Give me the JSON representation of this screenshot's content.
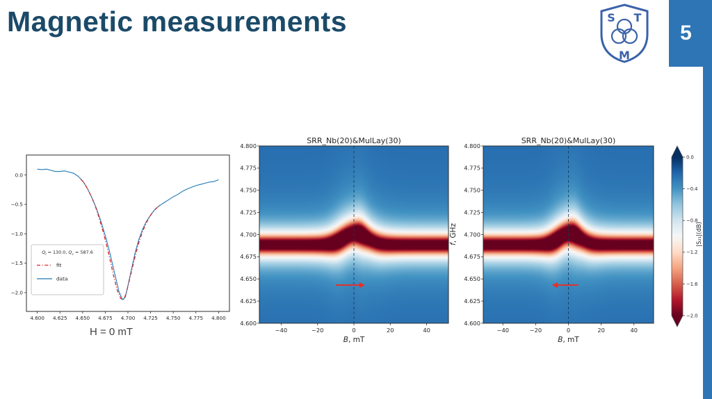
{
  "slide": {
    "title": "Magnetic measurements",
    "page_number": "5",
    "caption": "H = 0 mT",
    "accent_color": "#2e75b6",
    "title_color": "#1b4a68",
    "background": "#ffffff"
  },
  "logo": {
    "letter_top_left": "S",
    "letter_top_right": "T",
    "letter_bottom": "M",
    "color": "#3a62a8"
  },
  "chart_data": [
    {
      "type": "line",
      "title": "",
      "xlim": [
        4.588,
        4.812
      ],
      "ylim": [
        -2.32,
        0.34
      ],
      "x_ticks": {
        "values": [
          4.6,
          4.625,
          4.65,
          4.675,
          4.7,
          4.725,
          4.75,
          4.775,
          4.8
        ],
        "labels": [
          "4.600",
          "4.625",
          "4.650",
          "4.675",
          "4.700",
          "4.725",
          "4.750",
          "4.775",
          "4.800"
        ]
      },
      "y_ticks": {
        "values": [
          0.0,
          -0.5,
          -1.0,
          -1.5,
          -2.0
        ],
        "labels": [
          "0.0",
          "−0.5",
          "−1.0",
          "−1.5",
          "−2.0"
        ]
      },
      "legend": {
        "title": "Q_l = 130.0, Q_c = 587.6",
        "entries": [
          {
            "label": "fit",
            "color": "#d62728",
            "dash": "dashdot"
          },
          {
            "label": "data",
            "color": "#1f77b4",
            "dash": "solid"
          }
        ]
      },
      "series": [
        {
          "name": "data",
          "color": "#1f77b4",
          "dash": "solid",
          "x": [
            4.6,
            4.605,
            4.61,
            4.615,
            4.62,
            4.625,
            4.63,
            4.635,
            4.64,
            4.645,
            4.65,
            4.655,
            4.66,
            4.665,
            4.67,
            4.675,
            4.68,
            4.685,
            4.69,
            4.694,
            4.697,
            4.7,
            4.704,
            4.708,
            4.712,
            4.716,
            4.72,
            4.725,
            4.73,
            4.735,
            4.74,
            4.745,
            4.75,
            4.755,
            4.76,
            4.765,
            4.77,
            4.775,
            4.78,
            4.785,
            4.79,
            4.795,
            4.8
          ],
          "y": [
            0.1,
            0.09,
            0.1,
            0.08,
            0.06,
            0.06,
            0.07,
            0.05,
            0.03,
            -0.02,
            -0.1,
            -0.22,
            -0.38,
            -0.56,
            -0.78,
            -1.03,
            -1.32,
            -1.65,
            -1.98,
            -2.12,
            -2.08,
            -1.88,
            -1.6,
            -1.32,
            -1.1,
            -0.93,
            -0.8,
            -0.68,
            -0.58,
            -0.52,
            -0.47,
            -0.42,
            -0.37,
            -0.33,
            -0.28,
            -0.24,
            -0.21,
            -0.18,
            -0.16,
            -0.14,
            -0.12,
            -0.11,
            -0.08
          ]
        },
        {
          "name": "fit",
          "color": "#d62728",
          "dash": "dashdot",
          "x": [
            4.648,
            4.652,
            4.656,
            4.66,
            4.664,
            4.668,
            4.672,
            4.676,
            4.68,
            4.684,
            4.688,
            4.692,
            4.695,
            4.698,
            4.701,
            4.705,
            4.709,
            4.713,
            4.717,
            4.721,
            4.726,
            4.731,
            4.736
          ],
          "y": [
            -0.07,
            -0.14,
            -0.25,
            -0.38,
            -0.53,
            -0.72,
            -0.93,
            -1.16,
            -1.42,
            -1.7,
            -1.95,
            -2.1,
            -2.12,
            -2.02,
            -1.83,
            -1.57,
            -1.32,
            -1.1,
            -0.93,
            -0.79,
            -0.66,
            -0.57,
            -0.5
          ]
        }
      ]
    },
    {
      "type": "heatmap",
      "title": "SRR_Nb(20)&MulLay(30)",
      "xlabel_var": "B",
      "xlabel_unit": ", mT",
      "x_range": [
        -52,
        52
      ],
      "y_range": [
        4.6,
        4.8
      ],
      "x_ticks": {
        "values": [
          -40,
          -20,
          0,
          20,
          40
        ],
        "labels": [
          "−40",
          "−20",
          "0",
          "20",
          "40"
        ]
      },
      "y_ticks": {
        "values": [
          4.8,
          4.775,
          4.75,
          4.725,
          4.7,
          4.675,
          4.65,
          4.625,
          4.6
        ],
        "labels": [
          "4.800",
          "4.775",
          "4.750",
          "4.725",
          "4.700",
          "4.675",
          "4.650",
          "4.625",
          "4.600"
        ]
      },
      "zero_field_line_x": 0,
      "arrow": {
        "y": 4.643,
        "from_x": -10,
        "to_x": 6,
        "direction": "right",
        "color": "#e5312a"
      },
      "resonance": {
        "f0": 4.6885,
        "bump_center": 1,
        "bump_amp": 0.013,
        "bump_width": 9,
        "linewidth": 0.011,
        "depth": 2.1,
        "background_db": -0.22,
        "hotspots": [
          {
            "B": -8,
            "width": 6,
            "extra": 0.35
          },
          {
            "B": 4,
            "width": 4,
            "extra": 0.35
          }
        ]
      },
      "colormap": "RdBu_r"
    },
    {
      "type": "heatmap",
      "title": "SRR_Nb(20)&MulLay(30)",
      "xlabel_var": "B",
      "xlabel_unit": ", mT",
      "ylabel_var": "f",
      "ylabel_unit": ", GHz",
      "x_range": [
        -52,
        52
      ],
      "y_range": [
        4.6,
        4.8
      ],
      "x_ticks": {
        "values": [
          -40,
          -20,
          0,
          20,
          40
        ],
        "labels": [
          "−40",
          "−20",
          "0",
          "20",
          "40"
        ]
      },
      "y_ticks": {
        "values": [
          4.8,
          4.775,
          4.75,
          4.725,
          4.7,
          4.675,
          4.65,
          4.625,
          4.6
        ],
        "labels": [
          "4.800",
          "4.775",
          "4.750",
          "4.725",
          "4.700",
          "4.675",
          "4.650",
          "4.625",
          "4.600"
        ]
      },
      "zero_field_line_x": 0,
      "arrow": {
        "y": 4.643,
        "from_x": 6,
        "to_x": -10,
        "direction": "left",
        "color": "#e5312a"
      },
      "resonance": {
        "f0": 4.6885,
        "bump_center": 1,
        "bump_amp": 0.013,
        "bump_width": 9,
        "linewidth": 0.011,
        "depth": 2.1,
        "background_db": -0.22,
        "hotspots": [
          {
            "B": -8,
            "width": 6,
            "extra": 0.35
          },
          {
            "B": 4,
            "width": 4,
            "extra": 0.35
          }
        ]
      },
      "colormap": "RdBu_r",
      "colorbar": {
        "label": "|S₂₁|(dB)",
        "vmax": 0,
        "vmin": -2,
        "extend": "both",
        "ticks": {
          "values": [
            0.0,
            -0.4,
            -0.8,
            -1.2,
            -1.6,
            -2.0
          ],
          "labels": [
            "0.0",
            "−0.4",
            "−0.8",
            "−1.2",
            "−1.6",
            "−2.0"
          ]
        }
      }
    }
  ]
}
